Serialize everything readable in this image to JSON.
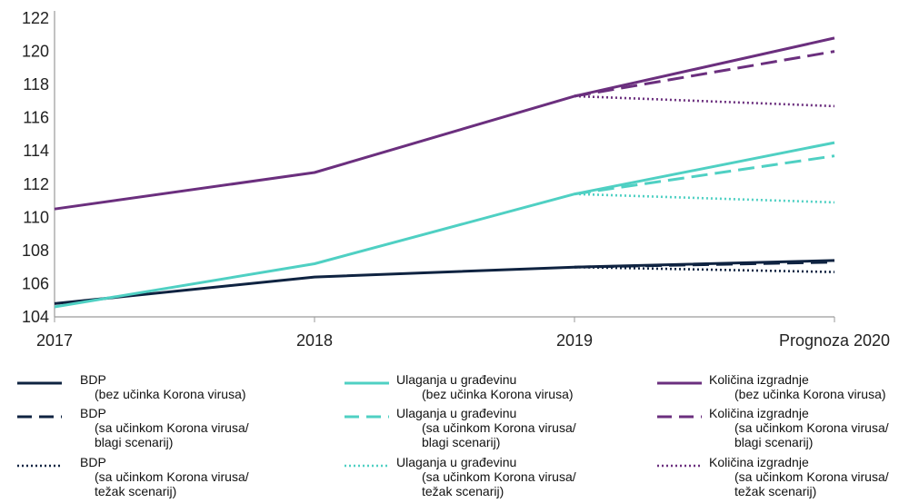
{
  "chart_data": {
    "type": "line",
    "x": [
      "2017",
      "2018",
      "2019",
      "Prognoza 2020"
    ],
    "ylim": [
      104,
      122
    ],
    "yticks": [
      104,
      106,
      108,
      110,
      112,
      114,
      116,
      118,
      120,
      122
    ],
    "grid": false,
    "legend_position": "bottom",
    "colors": {
      "bdp": "#0f2341",
      "ulaganja": "#4fd0c3",
      "kolicina": "#6b2f7e"
    },
    "series": [
      {
        "key": "bdp_base",
        "group": "bdp",
        "style": "solid",
        "values": [
          104.8,
          106.4,
          107.0,
          107.4
        ]
      },
      {
        "key": "bdp_blagi",
        "group": "bdp",
        "style": "dashed",
        "values": [
          null,
          null,
          107.0,
          107.3
        ]
      },
      {
        "key": "bdp_tezak",
        "group": "bdp",
        "style": "dotted",
        "values": [
          null,
          null,
          107.0,
          106.7
        ]
      },
      {
        "key": "ulag_base",
        "group": "ulaganja",
        "style": "solid",
        "values": [
          104.6,
          107.2,
          111.4,
          114.5
        ]
      },
      {
        "key": "ulag_blagi",
        "group": "ulaganja",
        "style": "dashed",
        "values": [
          null,
          null,
          111.4,
          113.7
        ]
      },
      {
        "key": "ulag_tezak",
        "group": "ulaganja",
        "style": "dotted",
        "values": [
          null,
          null,
          111.4,
          110.9
        ]
      },
      {
        "key": "kol_base",
        "group": "kolicina",
        "style": "solid",
        "values": [
          110.5,
          112.7,
          117.3,
          120.8
        ]
      },
      {
        "key": "kol_blagi",
        "group": "kolicina",
        "style": "dashed",
        "values": [
          null,
          null,
          117.3,
          120.0
        ]
      },
      {
        "key": "kol_tezak",
        "group": "kolicina",
        "style": "dotted",
        "values": [
          null,
          null,
          117.3,
          116.7
        ]
      }
    ]
  },
  "legend": [
    {
      "series": "bdp_base",
      "lines": [
        "BDP",
        "(bez učinka Korona virusa)"
      ]
    },
    {
      "series": "bdp_blagi",
      "lines": [
        "BDP",
        "(sa učinkom Korona virusa/",
        "blagi scenarij)"
      ]
    },
    {
      "series": "bdp_tezak",
      "lines": [
        "BDP",
        "(sa učinkom Korona virusa/",
        "težak scenarij)"
      ]
    },
    {
      "series": "ulag_base",
      "lines": [
        "Ulaganja u građevinu",
        "(bez učinka Korona virusa)"
      ]
    },
    {
      "series": "ulag_blagi",
      "lines": [
        "Ulaganja u građevinu",
        "(sa učinkom Korona virusa/",
        "blagi scenarij)"
      ]
    },
    {
      "series": "ulag_tezak",
      "lines": [
        "Ulaganja u građevinu",
        "(sa učinkom Korona virusa/",
        "težak scenarij)"
      ]
    },
    {
      "series": "kol_base",
      "lines": [
        "Količina izgradnje",
        "(bez učinka Korona virusa)"
      ]
    },
    {
      "series": "kol_blagi",
      "lines": [
        "Količina izgradnje",
        "(sa učinkom Korona virusa/",
        "blagi scenarij)"
      ]
    },
    {
      "series": "kol_tezak",
      "lines": [
        "Količina izgradnje",
        "(sa učinkom Korona virusa/",
        "težak scenarij)"
      ]
    }
  ]
}
